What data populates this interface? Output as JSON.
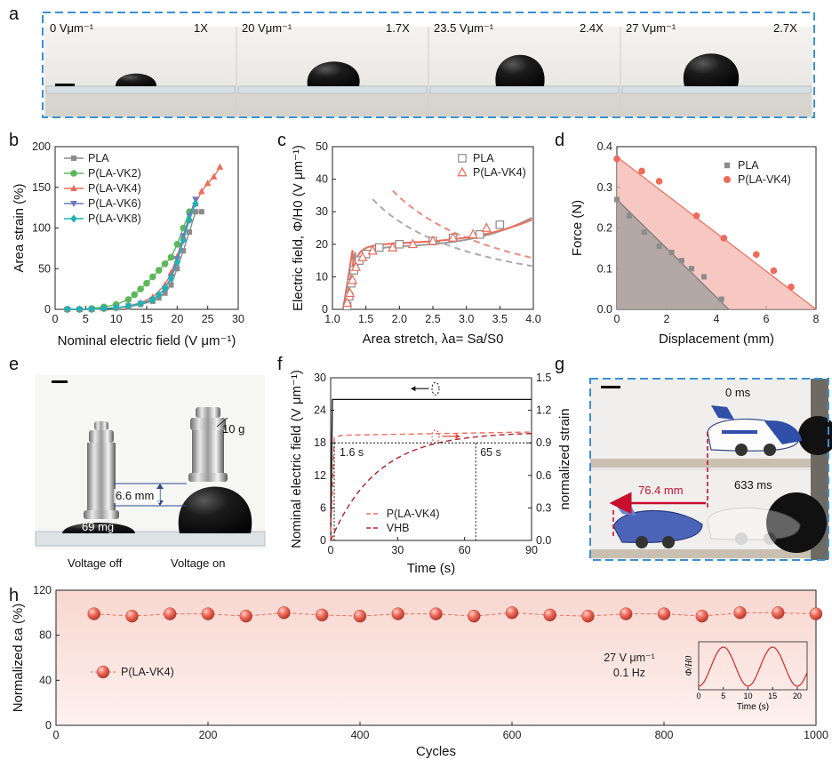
{
  "figure": {
    "panel_labels": [
      "a",
      "b",
      "c",
      "d",
      "e",
      "f",
      "g",
      "h"
    ],
    "colors": {
      "pla": "#8c8c8c",
      "vk2": "#5cb85c",
      "vk4": "#ef6a5a",
      "vk6": "#6b78c2",
      "vk8": "#1fb3b3",
      "vhb": "#b0202a",
      "frame": "#3b8fd4",
      "droplet": "#111111"
    }
  },
  "panel_a": {
    "labels": [
      "0 Vμm⁻¹",
      "20 Vμm⁻¹",
      "23.5 Vμm⁻¹",
      "27 Vμm⁻¹"
    ],
    "ratios": [
      "1X",
      "1.7X",
      "2.4X",
      "2.7X"
    ]
  },
  "panel_e": {
    "weight_label": "10 g",
    "distance_label": "6.6 mm",
    "mass_label": "69 mg",
    "caption_off": "Voltage off",
    "caption_on": "Voltage on"
  },
  "panel_g": {
    "t0": "0 ms",
    "t1": "633 ms",
    "distance": "76.4 mm"
  },
  "chart_data": [
    {
      "panel": "b",
      "type": "line",
      "xlabel": "Nominal electric field (V μm⁻¹)",
      "ylabel": "Area strain (%)",
      "xlim": [
        0,
        30
      ],
      "ylim": [
        0,
        200
      ],
      "xticks": [
        "0",
        "5",
        "10",
        "15",
        "20",
        "25",
        "30"
      ],
      "yticks": [
        "0",
        "50",
        "100",
        "150",
        "200"
      ],
      "legend_position": "top-left",
      "series": [
        {
          "name": "PLA",
          "color": "#8c8c8c",
          "marker": "square",
          "x": [
            2,
            4,
            6,
            8,
            10,
            12,
            14,
            16,
            17,
            18,
            19,
            20,
            21,
            22,
            23,
            24
          ],
          "y": [
            0,
            0,
            0,
            1,
            2,
            3,
            6,
            10,
            14,
            20,
            30,
            50,
            72,
            95,
            120,
            120
          ]
        },
        {
          "name": "P(LA-VK2)",
          "color": "#5cb85c",
          "marker": "circle",
          "x": [
            2,
            4,
            6,
            8,
            10,
            12,
            13,
            14,
            15,
            16,
            17,
            18,
            19,
            20,
            21,
            22
          ],
          "y": [
            0,
            0,
            1,
            3,
            6,
            12,
            18,
            25,
            32,
            40,
            48,
            56,
            64,
            80,
            100,
            120
          ]
        },
        {
          "name": "P(LA-VK4)",
          "color": "#ef6a5a",
          "marker": "triangle",
          "x": [
            2,
            4,
            6,
            8,
            10,
            12,
            14,
            16,
            18,
            19,
            20,
            21,
            22,
            23,
            24,
            25,
            26,
            27
          ],
          "y": [
            0,
            0,
            0,
            1,
            2,
            4,
            8,
            15,
            30,
            45,
            65,
            90,
            110,
            130,
            145,
            155,
            163,
            175
          ]
        },
        {
          "name": "P(LA-VK6)",
          "color": "#6b78c2",
          "marker": "triangle-down",
          "x": [
            2,
            4,
            6,
            8,
            10,
            12,
            14,
            16,
            18,
            19,
            20,
            21,
            22,
            23
          ],
          "y": [
            0,
            0,
            0,
            1,
            2,
            4,
            7,
            12,
            25,
            40,
            62,
            90,
            115,
            135
          ]
        },
        {
          "name": "P(LA-VK8)",
          "color": "#1fb3b3",
          "marker": "diamond",
          "x": [
            2,
            4,
            6,
            8,
            10,
            12,
            14,
            16,
            17,
            18,
            19,
            20,
            21,
            22,
            23
          ],
          "y": [
            0,
            0,
            0,
            1,
            2,
            4,
            7,
            12,
            18,
            26,
            38,
            58,
            85,
            110,
            130
          ]
        }
      ]
    },
    {
      "panel": "c",
      "type": "line",
      "xlabel": "Area stretch, λa= Sa/S0",
      "ylabel": "Electric field, Φ/H0 (V μm⁻¹)",
      "xlim": [
        1.0,
        4.0
      ],
      "ylim": [
        0,
        50
      ],
      "xticks": [
        "1.0",
        "1.5",
        "2.0",
        "2.5",
        "3.0",
        "3.5",
        "4.0"
      ],
      "yticks": [
        "0",
        "10",
        "20",
        "30",
        "40",
        "50"
      ],
      "legend_position": "top-right",
      "series": [
        {
          "name": "PLA",
          "color": "#8c8c8c",
          "marker": "square-open",
          "x": [
            1.22,
            1.25,
            1.28,
            1.32,
            1.4,
            1.5,
            1.7,
            2.0,
            2.5,
            2.8,
            3.2,
            3.5
          ],
          "y": [
            1,
            4,
            8,
            12,
            15,
            17,
            19,
            20,
            21,
            22,
            23,
            26
          ]
        },
        {
          "name": "P(LA-VK4)",
          "color": "#ef6a5a",
          "marker": "triangle-open",
          "x": [
            1.22,
            1.26,
            1.3,
            1.35,
            1.45,
            1.6,
            1.9,
            2.2,
            2.5,
            2.8,
            3.1,
            3.3
          ],
          "y": [
            2,
            5,
            9,
            13,
            16,
            18,
            19,
            20,
            21,
            22,
            23,
            25
          ]
        }
      ]
    },
    {
      "panel": "d",
      "type": "scatter",
      "xlabel": "Displacement (mm)",
      "ylabel": "Force (N)",
      "xlim": [
        0,
        8
      ],
      "ylim": [
        0,
        0.4
      ],
      "xticks": [
        "0",
        "2",
        "4",
        "6",
        "8"
      ],
      "yticks": [
        "0.0",
        "0.1",
        "0.2",
        "0.3",
        "0.4"
      ],
      "legend_position": "top-right",
      "series": [
        {
          "name": "PLA",
          "color": "#8c8c8c",
          "marker": "square",
          "x": [
            0,
            0.5,
            1.1,
            1.7,
            2.2,
            2.6,
            3.0,
            3.5,
            4.2
          ],
          "y": [
            0.27,
            0.23,
            0.19,
            0.155,
            0.14,
            0.12,
            0.1,
            0.08,
            0.025
          ]
        },
        {
          "name": "P(LA-VK4)",
          "color": "#ef6a5a",
          "marker": "circle",
          "x": [
            0,
            1,
            1.7,
            3.2,
            4.3,
            5.6,
            6.3,
            7.0
          ],
          "y": [
            0.37,
            0.34,
            0.315,
            0.23,
            0.175,
            0.135,
            0.095,
            0.055
          ]
        }
      ]
    },
    {
      "panel": "f",
      "type": "line",
      "xlabel": "Time (s)",
      "ylabel": "Nominal electric field (V μm⁻¹)",
      "y2label": "normalized strain",
      "xlim": [
        0,
        90
      ],
      "ylim": [
        0,
        30
      ],
      "y2lim": [
        0,
        1.5
      ],
      "xticks": [
        "0",
        "30",
        "60",
        "90"
      ],
      "yticks": [
        "0",
        "6",
        "12",
        "18",
        "24",
        "30"
      ],
      "y2ticks": [
        "0.0",
        "0.3",
        "0.6",
        "0.9",
        "1.2",
        "1.5"
      ],
      "annotations": [
        "1.6 s",
        "65 s"
      ],
      "series": [
        {
          "name": "P(LA-VK4)",
          "color": "#ef6a5a",
          "dash": true,
          "x": [
            0,
            1.6,
            5,
            90
          ],
          "y": [
            0,
            0.95,
            0.97,
            1.0
          ]
        },
        {
          "name": "VHB",
          "color": "#b0202a",
          "dash": true,
          "x": [
            0,
            5,
            10,
            20,
            30,
            40,
            50,
            65,
            80,
            90
          ],
          "y": [
            0,
            0.18,
            0.33,
            0.56,
            0.71,
            0.81,
            0.88,
            0.95,
            0.98,
            0.99
          ]
        }
      ]
    },
    {
      "panel": "h",
      "type": "line",
      "xlabel": "Cycles",
      "ylabel": "Normalized εa (%)",
      "xlim": [
        0,
        1000
      ],
      "ylim": [
        0,
        120
      ],
      "xticks": [
        "0",
        "200",
        "400",
        "600",
        "800",
        "1000"
      ],
      "yticks": [
        "0",
        "40",
        "80",
        "120"
      ],
      "legend_position": "left",
      "annotations": [
        "27 V μm⁻¹",
        "0.1 Hz"
      ],
      "series": [
        {
          "name": "P(LA-VK4)",
          "color": "#ef6a5a",
          "marker": "sphere",
          "x": [
            50,
            100,
            150,
            200,
            250,
            300,
            350,
            400,
            450,
            500,
            550,
            600,
            650,
            700,
            750,
            800,
            850,
            900,
            950,
            1000
          ],
          "y": [
            99,
            97,
            99,
            99,
            97,
            100,
            98,
            97,
            99,
            99,
            97,
            100,
            98,
            97,
            99,
            99,
            97,
            100,
            100,
            99
          ]
        }
      ],
      "inset": {
        "xlabel": "Time (s)",
        "ylabel": "Φ/H0",
        "xticks": [
          "0",
          "5",
          "10",
          "15",
          "20"
        ],
        "period": 10
      }
    }
  ]
}
